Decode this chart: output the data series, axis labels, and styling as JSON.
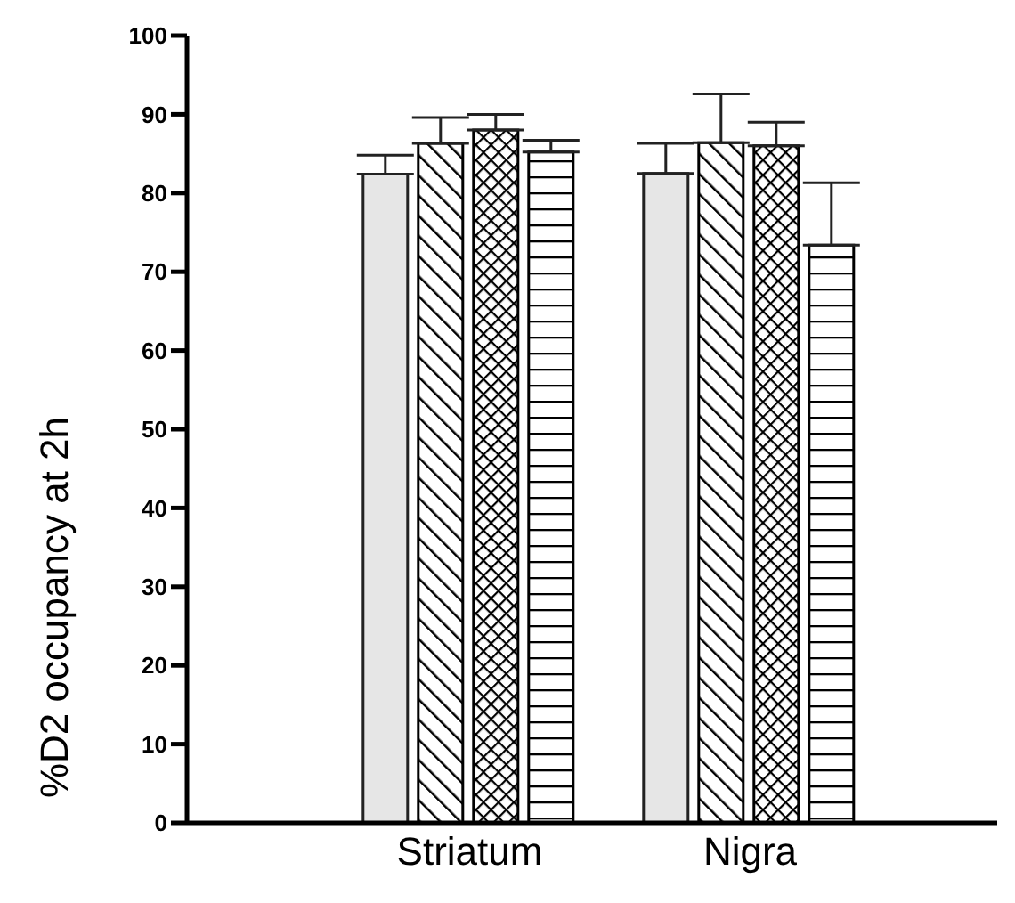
{
  "chart_data": {
    "type": "bar",
    "ylabel": "%D2 occupancy at 2h",
    "categories": [
      "Striatum",
      "Nigra"
    ],
    "series": [
      {
        "color": "#e6e6e6",
        "values": [
          82.4,
          82.5
        ],
        "errors": [
          [
            82.4,
            84.8
          ],
          [
            82.5,
            86.3
          ]
        ]
      },
      {
        "color": "#000000",
        "values": [
          86.3,
          86.4
        ],
        "errors": [
          [
            86.3,
            89.6
          ],
          [
            86.4,
            92.6
          ]
        ]
      },
      {
        "color": "#000000",
        "values": [
          88.0,
          86.0
        ],
        "errors": [
          [
            88.0,
            90.0
          ],
          [
            86.0,
            89.0
          ]
        ]
      },
      {
        "color": "#000000",
        "values": [
          85.2,
          73.4
        ],
        "errors": [
          [
            85.2,
            86.7
          ],
          [
            73.4,
            81.3
          ]
        ]
      }
    ],
    "ylim": [
      0,
      100
    ],
    "yticks": [
      0,
      10,
      20,
      30,
      40,
      50,
      60,
      70,
      80,
      90,
      100
    ],
    "grid": false,
    "legend": false
  }
}
